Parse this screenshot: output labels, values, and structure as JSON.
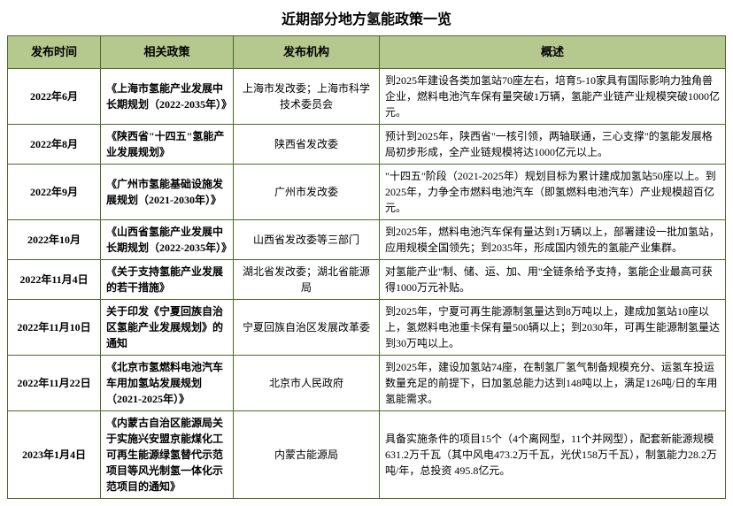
{
  "title": "近期部分地方氢能政策一览",
  "columns": [
    "发布时间",
    "相关政策",
    "发布机构",
    "概述"
  ],
  "header_bg": "#b5c88e",
  "border_color": "#4a6b2a",
  "rows": [
    {
      "date": "2022年6月",
      "policy": "《上海市氢能产业发展中长期规划（2022-2035年）》",
      "org": "上海市发改委；上海市科学技术委员会",
      "summary": "到2025年建设各类加氢站70座左右，培育5-10家具有国际影响力独角兽企业，燃料电池汽车保有量突破1万辆，氢能产业链产业规模突破1000亿元。"
    },
    {
      "date": "2022年8月",
      "policy": "《陕西省\"十四五\"氢能产业发展规划》",
      "org": "陕西省发改委",
      "summary": "预计到2025年，陕西省\"一核引领，两轴联通，三心支撑\"的氢能发展格局初步形成，全产业链规模将达1000亿元以上。"
    },
    {
      "date": "2022年9月",
      "policy": "《广州市氢能基础设施发展规划（2021-2030年）》",
      "org": "广州市发改委",
      "summary": "\"十四五\"阶段（2021-2025年）规划目标为累计建成加氢站50座以上。到2025年，力争全市燃料电池汽车（即氢燃料电池汽车）产业规模超百亿元。"
    },
    {
      "date": "2022年10月",
      "policy": "《山西省氢能产业发展中长期规划（2022-2035年）》",
      "org": "山西省发改委等三部门",
      "summary": "到2025年，燃料电池汽车保有量达到1万辆以上，部署建设一批加氢站，应用规模全国领先；到2035年，形成国内领先的氢能产业集群。"
    },
    {
      "date": "2022年11月4日",
      "policy": "《关于支持氢能产业发展的若干措施》",
      "org": "湖北省发改委；湖北省能源局",
      "summary": "对氢能产业\"制、储、运、加、用\"全链条给予支持，氢能企业最高可获得1000万元补贴。"
    },
    {
      "date": "2022年11月10日",
      "policy": "关于印发《宁夏回族自治区氢能产业发展规划》的通知",
      "org": "宁夏回族自治区发展改革委",
      "summary": "到2025年，宁夏可再生能源制氢量达到8万吨以上，建成加氢站10座以上，氢燃料电池重卡保有量500辆以上；到2030年，可再生能源制氢量达到30万吨以上。"
    },
    {
      "date": "2022年11月22日",
      "policy": "《北京市氢燃料电池汽车车用加氢站发展规划（2021-2025年）》",
      "org": "北京市人民政府",
      "summary": "到2025年，建设加氢站74座，在制氢厂氢气制备规模充分、运氢车投运数量充足的前提下，日加氢总能力达到148吨以上，满足126吨/日的车用氢能需求。"
    },
    {
      "date": "2023年1月4日",
      "policy": "《内蒙古自治区能源局关于实施兴安盟京能煤化工可再生能源绿氢替代示范项目等风光制氢一体化示范项目的通知》",
      "org": "内蒙古能源局",
      "summary": "具备实施条件的项目15个（4个离网型，11个并网型），配套新能源规模631.2万千瓦（其中风电473.2万千瓦，光伏158万千瓦），制氢能力28.2万吨/年，总投资 495.8亿元。"
    }
  ]
}
